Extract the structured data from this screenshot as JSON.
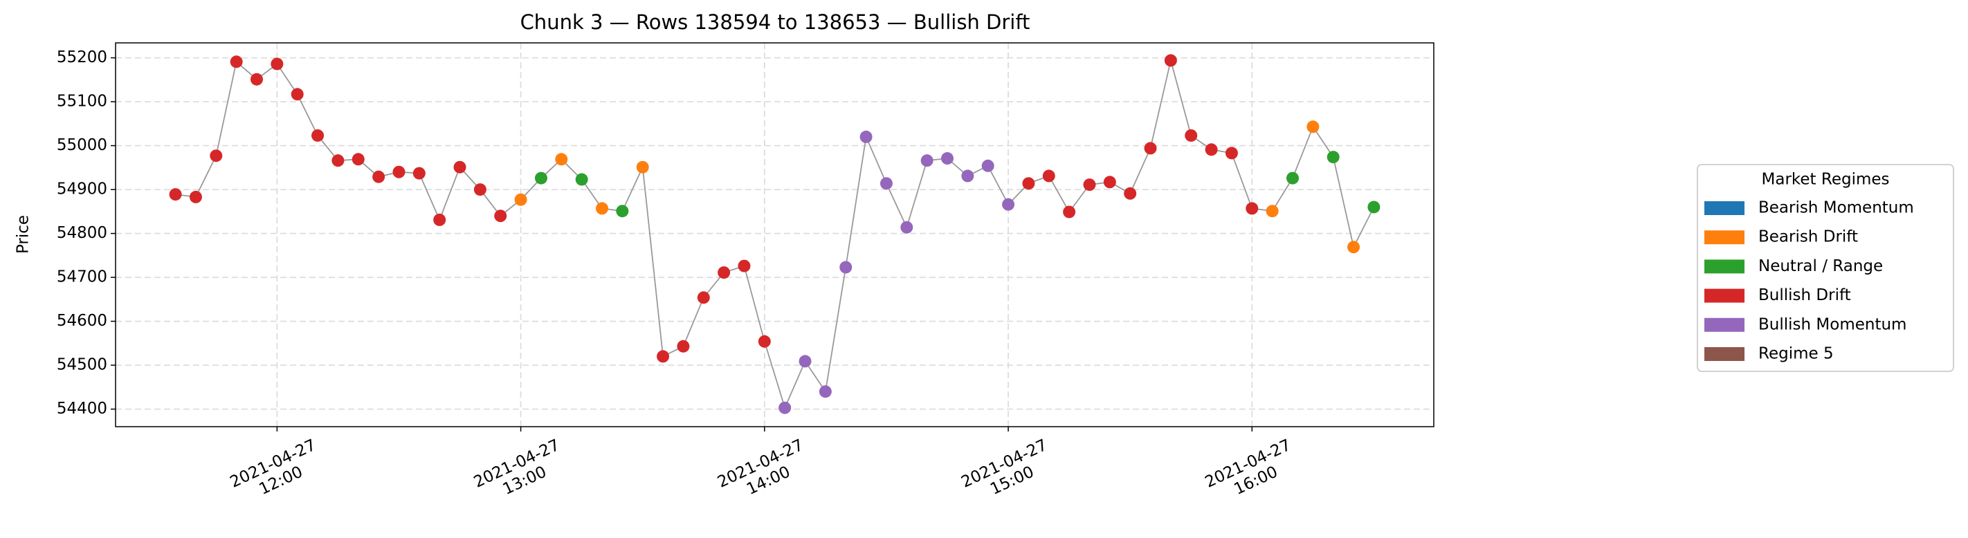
{
  "chart_data": {
    "type": "scatter",
    "title": "Chunk 3 — Rows 138594 to 138653 — Bullish Drift",
    "y_label": "Price",
    "x": [
      "2021-04-27 11:35",
      "2021-04-27 11:40",
      "2021-04-27 11:45",
      "2021-04-27 11:50",
      "2021-04-27 11:55",
      "2021-04-27 12:00",
      "2021-04-27 12:05",
      "2021-04-27 12:10",
      "2021-04-27 12:15",
      "2021-04-27 12:20",
      "2021-04-27 12:25",
      "2021-04-27 12:30",
      "2021-04-27 12:35",
      "2021-04-27 12:40",
      "2021-04-27 12:45",
      "2021-04-27 12:50",
      "2021-04-27 12:55",
      "2021-04-27 13:00",
      "2021-04-27 13:05",
      "2021-04-27 13:10",
      "2021-04-27 13:15",
      "2021-04-27 13:20",
      "2021-04-27 13:25",
      "2021-04-27 13:30",
      "2021-04-27 13:35",
      "2021-04-27 13:40",
      "2021-04-27 13:45",
      "2021-04-27 13:50",
      "2021-04-27 13:55",
      "2021-04-27 14:00",
      "2021-04-27 14:05",
      "2021-04-27 14:10",
      "2021-04-27 14:15",
      "2021-04-27 14:20",
      "2021-04-27 14:25",
      "2021-04-27 14:30",
      "2021-04-27 14:35",
      "2021-04-27 14:40",
      "2021-04-27 14:45",
      "2021-04-27 14:50",
      "2021-04-27 14:55",
      "2021-04-27 15:00",
      "2021-04-27 15:05",
      "2021-04-27 15:10",
      "2021-04-27 15:15",
      "2021-04-27 15:20",
      "2021-04-27 15:25",
      "2021-04-27 15:30",
      "2021-04-27 15:35",
      "2021-04-27 15:40",
      "2021-04-27 15:45",
      "2021-04-27 15:50",
      "2021-04-27 15:55",
      "2021-04-27 16:00",
      "2021-04-27 16:05",
      "2021-04-27 16:10",
      "2021-04-27 16:15",
      "2021-04-27 16:20",
      "2021-04-27 16:25",
      "2021-04-27 16:30"
    ],
    "values": [
      54889,
      54883,
      54977,
      55191,
      55151,
      55186,
      55117,
      55023,
      54966,
      54969,
      54929,
      54940,
      54937,
      54831,
      54951,
      54900,
      54840,
      54877,
      54926,
      54969,
      54923,
      54857,
      54851,
      54951,
      54520,
      54543,
      54654,
      54711,
      54726,
      54554,
      54403,
      54509,
      54440,
      54723,
      55020,
      54914,
      54814,
      54966,
      54971,
      54931,
      54954,
      54866,
      54914,
      54931,
      54849,
      54911,
      54917,
      54891,
      54994,
      55194,
      55023,
      54991,
      54983,
      54857,
      54851,
      54926,
      55043,
      54974,
      54769,
      54860
    ],
    "regimes": [
      "Bullish Drift",
      "Bullish Drift",
      "Bullish Drift",
      "Bullish Drift",
      "Bullish Drift",
      "Bullish Drift",
      "Bullish Drift",
      "Bullish Drift",
      "Bullish Drift",
      "Bullish Drift",
      "Bullish Drift",
      "Bullish Drift",
      "Bullish Drift",
      "Bullish Drift",
      "Bullish Drift",
      "Bullish Drift",
      "Bullish Drift",
      "Bearish Drift",
      "Neutral / Range",
      "Bearish Drift",
      "Neutral / Range",
      "Bearish Drift",
      "Neutral / Range",
      "Bearish Drift",
      "Bullish Drift",
      "Bullish Drift",
      "Bullish Drift",
      "Bullish Drift",
      "Bullish Drift",
      "Bullish Drift",
      "Bullish Momentum",
      "Bullish Momentum",
      "Bullish Momentum",
      "Bullish Momentum",
      "Bullish Momentum",
      "Bullish Momentum",
      "Bullish Momentum",
      "Bullish Momentum",
      "Bullish Momentum",
      "Bullish Momentum",
      "Bullish Momentum",
      "Bullish Momentum",
      "Bullish Drift",
      "Bullish Drift",
      "Bullish Drift",
      "Bullish Drift",
      "Bullish Drift",
      "Bullish Drift",
      "Bullish Drift",
      "Bullish Drift",
      "Bullish Drift",
      "Bullish Drift",
      "Bullish Drift",
      "Bullish Drift",
      "Bearish Drift",
      "Neutral / Range",
      "Bearish Drift",
      "Neutral / Range",
      "Bearish Drift",
      "Neutral / Range"
    ],
    "line_color": "#999999",
    "legend": {
      "title": "Market Regimes",
      "position": "right",
      "items": [
        {
          "name": "Bearish Momentum",
          "color": "#1f77b4"
        },
        {
          "name": "Bearish Drift",
          "color": "#ff7f0e"
        },
        {
          "name": "Neutral / Range",
          "color": "#2ca02c"
        },
        {
          "name": "Bullish Drift",
          "color": "#d62728"
        },
        {
          "name": "Bullish Momentum",
          "color": "#9467bd"
        },
        {
          "name": "Regime 5",
          "color": "#8c564b"
        }
      ]
    },
    "xlim": [
      "2021-04-27 11:20:15",
      "2021-04-27 16:44:45"
    ],
    "xticks": [
      "2021-04-27 12:00",
      "2021-04-27 13:00",
      "2021-04-27 14:00",
      "2021-04-27 15:00",
      "2021-04-27 16:00"
    ],
    "ylim": [
      54360,
      55234
    ],
    "yticks": [
      54400,
      54500,
      54600,
      54700,
      54800,
      54900,
      55000,
      55100,
      55200
    ],
    "grid": true
  }
}
